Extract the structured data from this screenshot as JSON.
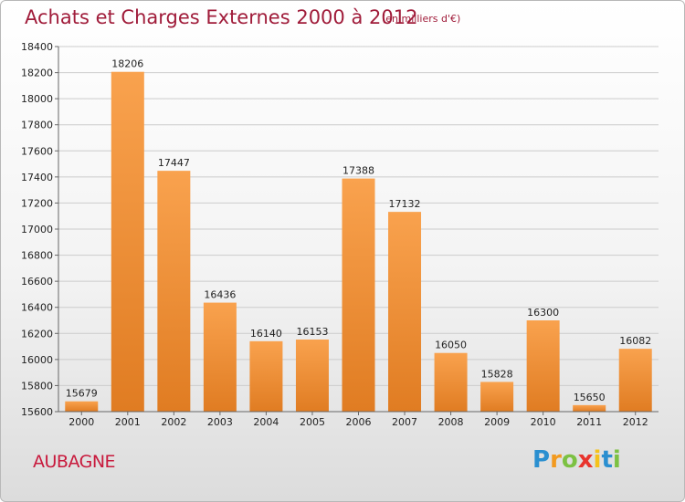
{
  "title": "Achats et Charges Externes 2000 à 2012",
  "unit": "(en milliers d'€)",
  "commune": "AUBAGNE",
  "logo": {
    "letters": [
      "P",
      "r",
      "o",
      "x",
      "i",
      "t",
      "i"
    ],
    "colors": [
      "#2a8fd0",
      "#f29a1f",
      "#7cc142",
      "#e8342d",
      "#f5c21b",
      "#2a8fd0",
      "#7cc142"
    ]
  },
  "colors": {
    "bar_top": "#f9a24e",
    "bar_bottom": "#e07c22",
    "text": "#222222",
    "grid": "#cccccc"
  },
  "chart_data": {
    "type": "bar",
    "categories": [
      "2000",
      "2001",
      "2002",
      "2003",
      "2004",
      "2005",
      "2006",
      "2007",
      "2008",
      "2009",
      "2010",
      "2011",
      "2012"
    ],
    "values": [
      15679,
      18206,
      17447,
      16436,
      16140,
      16153,
      17388,
      17132,
      16050,
      15828,
      16300,
      15650,
      16082
    ],
    "title": "Achats et Charges Externes 2000 à 2012",
    "ylim": [
      15600,
      18400
    ],
    "yticks": [
      15600,
      15800,
      16000,
      16200,
      16400,
      16600,
      16800,
      17000,
      17200,
      17400,
      17600,
      17800,
      18000,
      18200,
      18400
    ],
    "grid": true
  }
}
